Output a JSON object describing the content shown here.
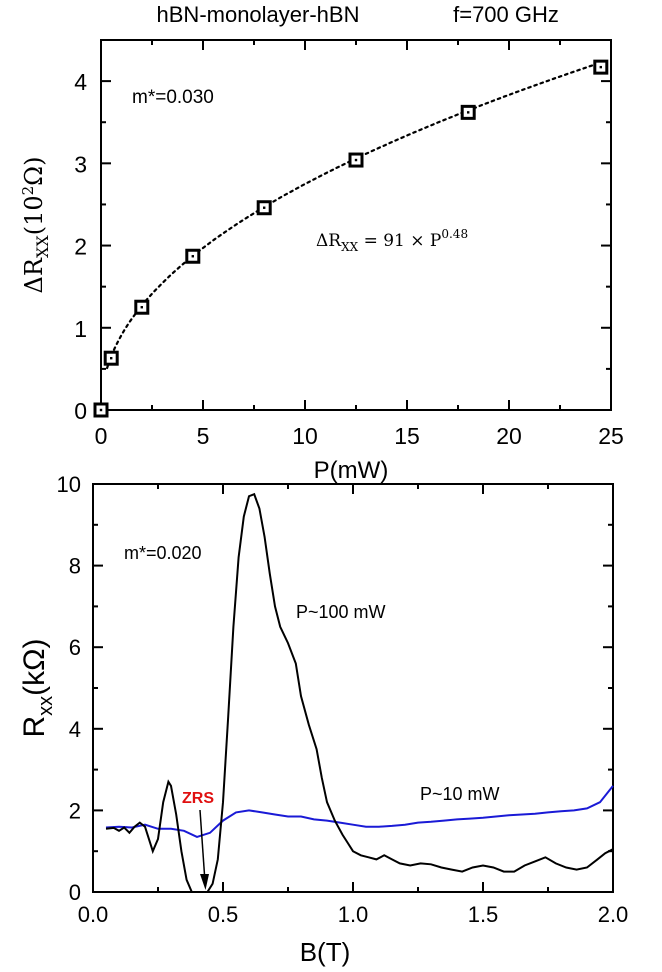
{
  "chart_data": [
    {
      "type": "scatter",
      "title_left": "hBN-monolayer-hBN",
      "title_right": "f=700 GHz",
      "xlabel": "P(mW)",
      "ylabel": "ΔR_XX(10²Ω)",
      "xlim": [
        0,
        25
      ],
      "ylim": [
        0,
        4.5
      ],
      "xticks": [
        0,
        5,
        10,
        15,
        20,
        25
      ],
      "yticks": [
        0,
        1,
        2,
        3,
        4
      ],
      "annotation_mass": "m*=0.030",
      "fit_label": "ΔR_XX = 91 × P^0.48",
      "fit_label_parts": {
        "lhs": "ΔR",
        "sub": "XX",
        "mid": " = 91 × P",
        "sup": "0.48"
      },
      "series": [
        {
          "marker": "square",
          "x": [
            0,
            0.5,
            2,
            4.5,
            8,
            12.5,
            18,
            24.5
          ],
          "y": [
            0,
            0.63,
            1.25,
            1.87,
            2.46,
            3.04,
            3.62,
            4.17
          ]
        }
      ],
      "fit": {
        "style": "dotted",
        "a": 0.91,
        "b": 0.48
      },
      "grid": false
    },
    {
      "type": "line",
      "xlabel": "B(T)",
      "ylabel": "R_xx(kΩ)",
      "xlim": [
        0,
        2.0
      ],
      "ylim": [
        0,
        10
      ],
      "xticks": [
        0.0,
        0.5,
        1.0,
        1.5,
        2.0
      ],
      "yticks": [
        0,
        2,
        4,
        6,
        8,
        10
      ],
      "annotation_mass": "m*=0.020",
      "zrs_label": "ZRS",
      "series": [
        {
          "name": "P~100 mW",
          "color": "#000000",
          "x": [
            0.05,
            0.08,
            0.1,
            0.12,
            0.14,
            0.16,
            0.18,
            0.2,
            0.23,
            0.25,
            0.27,
            0.29,
            0.3,
            0.32,
            0.34,
            0.36,
            0.38,
            0.4,
            0.42,
            0.44,
            0.46,
            0.48,
            0.5,
            0.52,
            0.54,
            0.56,
            0.58,
            0.6,
            0.62,
            0.64,
            0.66,
            0.68,
            0.7,
            0.72,
            0.75,
            0.78,
            0.8,
            0.83,
            0.86,
            0.88,
            0.9,
            0.93,
            0.96,
            0.98,
            1.0,
            1.03,
            1.06,
            1.09,
            1.12,
            1.15,
            1.18,
            1.22,
            1.26,
            1.3,
            1.34,
            1.38,
            1.42,
            1.46,
            1.5,
            1.54,
            1.58,
            1.62,
            1.66,
            1.7,
            1.74,
            1.78,
            1.82,
            1.86,
            1.9,
            1.94,
            1.97,
            2.0
          ],
          "y": [
            1.55,
            1.57,
            1.5,
            1.58,
            1.45,
            1.6,
            1.7,
            1.6,
            1.0,
            1.3,
            2.2,
            2.7,
            2.6,
            1.9,
            1.0,
            0.3,
            0.0,
            0.0,
            0.0,
            0.0,
            0.2,
            0.8,
            2.2,
            4.3,
            6.5,
            8.2,
            9.2,
            9.7,
            9.75,
            9.4,
            8.7,
            7.8,
            7.0,
            6.5,
            6.1,
            5.6,
            4.8,
            4.1,
            3.5,
            2.8,
            2.2,
            1.75,
            1.4,
            1.2,
            1.0,
            0.9,
            0.85,
            0.8,
            0.9,
            0.8,
            0.7,
            0.65,
            0.7,
            0.68,
            0.6,
            0.55,
            0.5,
            0.6,
            0.65,
            0.6,
            0.5,
            0.5,
            0.65,
            0.75,
            0.85,
            0.7,
            0.6,
            0.55,
            0.6,
            0.8,
            0.95,
            1.05
          ]
        },
        {
          "name": "P~10 mW",
          "color": "#1a1ad6",
          "x": [
            0.05,
            0.1,
            0.15,
            0.2,
            0.25,
            0.3,
            0.35,
            0.4,
            0.45,
            0.5,
            0.55,
            0.6,
            0.65,
            0.7,
            0.75,
            0.8,
            0.85,
            0.9,
            0.95,
            1.0,
            1.05,
            1.1,
            1.15,
            1.2,
            1.25,
            1.3,
            1.35,
            1.4,
            1.45,
            1.5,
            1.55,
            1.6,
            1.65,
            1.7,
            1.75,
            1.8,
            1.85,
            1.9,
            1.95,
            2.0
          ],
          "y": [
            1.58,
            1.6,
            1.58,
            1.65,
            1.55,
            1.55,
            1.5,
            1.35,
            1.45,
            1.75,
            1.95,
            2.0,
            1.95,
            1.9,
            1.85,
            1.85,
            1.78,
            1.75,
            1.7,
            1.65,
            1.6,
            1.6,
            1.62,
            1.65,
            1.7,
            1.72,
            1.75,
            1.78,
            1.8,
            1.82,
            1.85,
            1.88,
            1.9,
            1.92,
            1.95,
            1.98,
            2.0,
            2.05,
            2.2,
            2.6
          ]
        }
      ],
      "grid": false
    }
  ]
}
